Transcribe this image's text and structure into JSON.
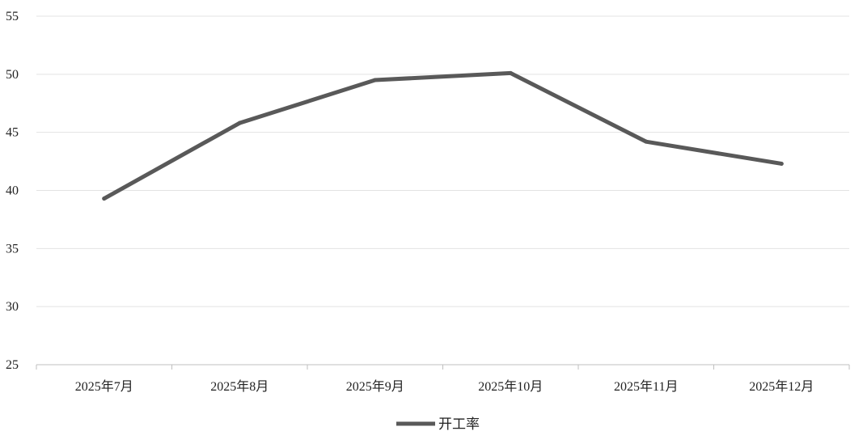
{
  "chart_data": {
    "type": "line",
    "categories": [
      "2025年7月",
      "2025年8月",
      "2025年9月",
      "2025年10月",
      "2025年11月",
      "2025年12月"
    ],
    "series": [
      {
        "name": "开工率",
        "values": [
          39.3,
          45.8,
          49.5,
          50.1,
          44.2,
          42.3
        ],
        "color": "#595959"
      }
    ],
    "title": "",
    "xlabel": "",
    "ylabel": "",
    "ylim": [
      25,
      55
    ],
    "yticks": [
      25,
      30,
      35,
      40,
      45,
      50,
      55
    ],
    "grid": true,
    "legend": "bottom-center"
  }
}
